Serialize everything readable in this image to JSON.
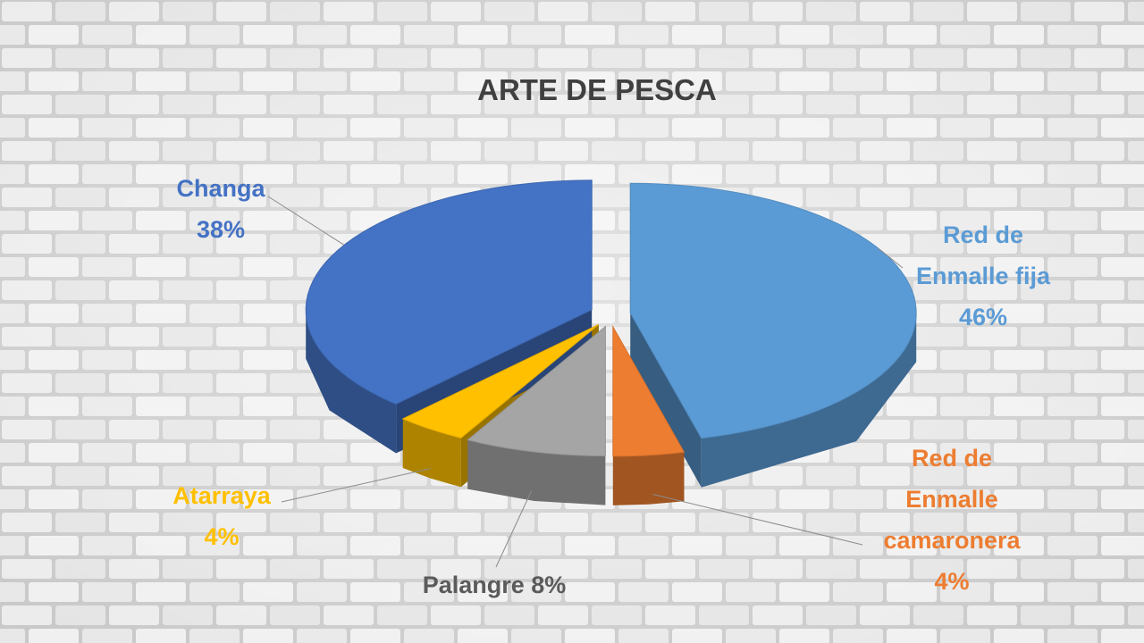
{
  "chart_data": {
    "type": "pie",
    "title": "ARTE DE PESCA",
    "categories": [
      "Red de Enmalle fija",
      "Red de Enmalle camaronera",
      "Palangre",
      "Atarraya",
      "Changa"
    ],
    "values": [
      46,
      4,
      8,
      4,
      38
    ],
    "value_labels": [
      "46%",
      "4%",
      "8%",
      "4%",
      "38%"
    ],
    "colors": [
      "#5b9bd5",
      "#ed7d31",
      "#a5a5a5",
      "#ffc000",
      "#4472c4"
    ]
  }
}
